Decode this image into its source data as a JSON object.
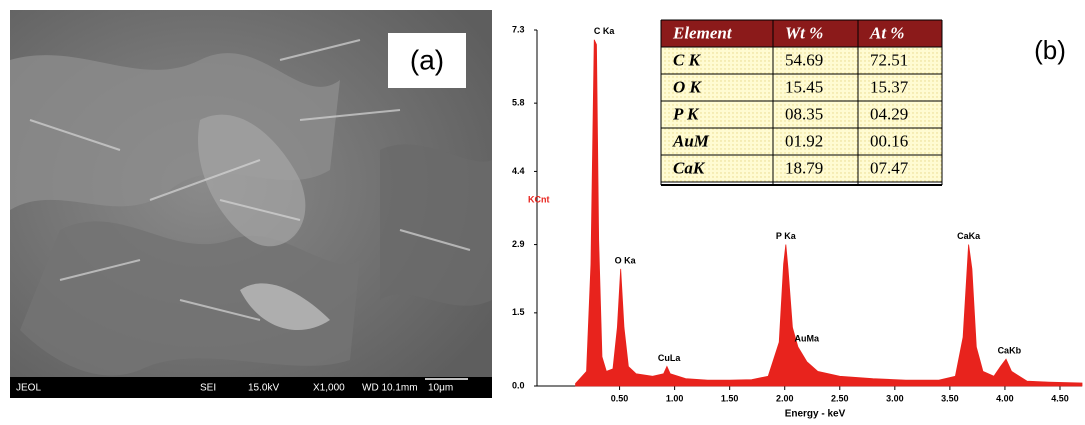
{
  "sem_image": {
    "panel_label": "(a)",
    "info_bar": [
      "JEOL",
      "SEI",
      "15.0kV",
      "X1,000",
      "WD 10.1mm",
      "10μm"
    ]
  },
  "chart_data": {
    "type": "area",
    "panel_label": "(b)",
    "x_label": "Energy - keV",
    "y_label": "KCnt",
    "xlim": [
      -0.25,
      4.7
    ],
    "ylim": [
      0,
      7.3
    ],
    "xticks": [
      {
        "value": 0.5,
        "label": "0.50"
      },
      {
        "value": 1,
        "label": "1.00"
      },
      {
        "value": 1.5,
        "label": "1.50"
      },
      {
        "value": 2,
        "label": "2.00"
      },
      {
        "value": 2.5,
        "label": "2.50"
      },
      {
        "value": 3,
        "label": "3.00"
      },
      {
        "value": 3.5,
        "label": "3.50"
      },
      {
        "value": 4,
        "label": "4.00"
      },
      {
        "value": 4.5,
        "label": "4.50"
      }
    ],
    "yticks": [
      {
        "value": 0,
        "label": "0.0"
      },
      1.5,
      2.9,
      4.4,
      5.8,
      7.3
    ],
    "x": [
      0.1,
      0.2,
      0.24,
      0.27,
      0.29,
      0.31,
      0.34,
      0.38,
      0.44,
      0.48,
      0.51,
      0.54,
      0.58,
      0.65,
      0.8,
      0.9,
      0.93,
      0.96,
      1.1,
      1.3,
      1.5,
      1.7,
      1.85,
      1.95,
      1.99,
      2.01,
      2.03,
      2.07,
      2.12,
      2.2,
      2.3,
      2.5,
      2.8,
      3.1,
      3.4,
      3.55,
      3.62,
      3.67,
      3.7,
      3.74,
      3.8,
      3.9,
      3.96,
      4.01,
      4.06,
      4.2,
      4.4,
      4.7
    ],
    "series": [
      {
        "color": "#e8231d",
        "values": [
          0.05,
          0.3,
          2.5,
          7.1,
          7.0,
          3.0,
          0.6,
          0.3,
          0.35,
          1.2,
          2.4,
          1.2,
          0.4,
          0.25,
          0.2,
          0.25,
          0.4,
          0.25,
          0.15,
          0.12,
          0.12,
          0.13,
          0.2,
          0.9,
          2.5,
          2.9,
          2.4,
          1.2,
          0.8,
          0.5,
          0.3,
          0.2,
          0.15,
          0.12,
          0.12,
          0.2,
          1.0,
          2.9,
          2.4,
          0.8,
          0.3,
          0.2,
          0.4,
          0.55,
          0.3,
          0.1,
          0.08,
          0.06
        ]
      }
    ],
    "annotations": [
      {
        "text": "C Ka",
        "x": 0.36,
        "y": 7.1
      },
      {
        "text": "O Ka",
        "x": 0.55,
        "y": 2.4
      },
      {
        "text": "CuLa",
        "x": 0.95,
        "y": 0.4
      },
      {
        "text": "P Ka",
        "x": 2.01,
        "y": 2.9
      },
      {
        "text": "AuMa",
        "x": 2.2,
        "y": 0.8
      },
      {
        "text": "CaKa",
        "x": 3.67,
        "y": 2.9
      },
      {
        "text": "CaKb",
        "x": 4.04,
        "y": 0.55
      }
    ],
    "table": {
      "header": [
        "Element",
        "Wt %",
        "At %"
      ],
      "rows": [
        [
          "C K",
          "54.69",
          "72.51"
        ],
        [
          "O K",
          "15.45",
          "15.37"
        ],
        [
          "P K",
          "08.35",
          "04.29"
        ],
        [
          "AuM",
          "01.92",
          "00.16"
        ],
        [
          "CaK",
          "18.79",
          "07.47"
        ]
      ]
    }
  }
}
